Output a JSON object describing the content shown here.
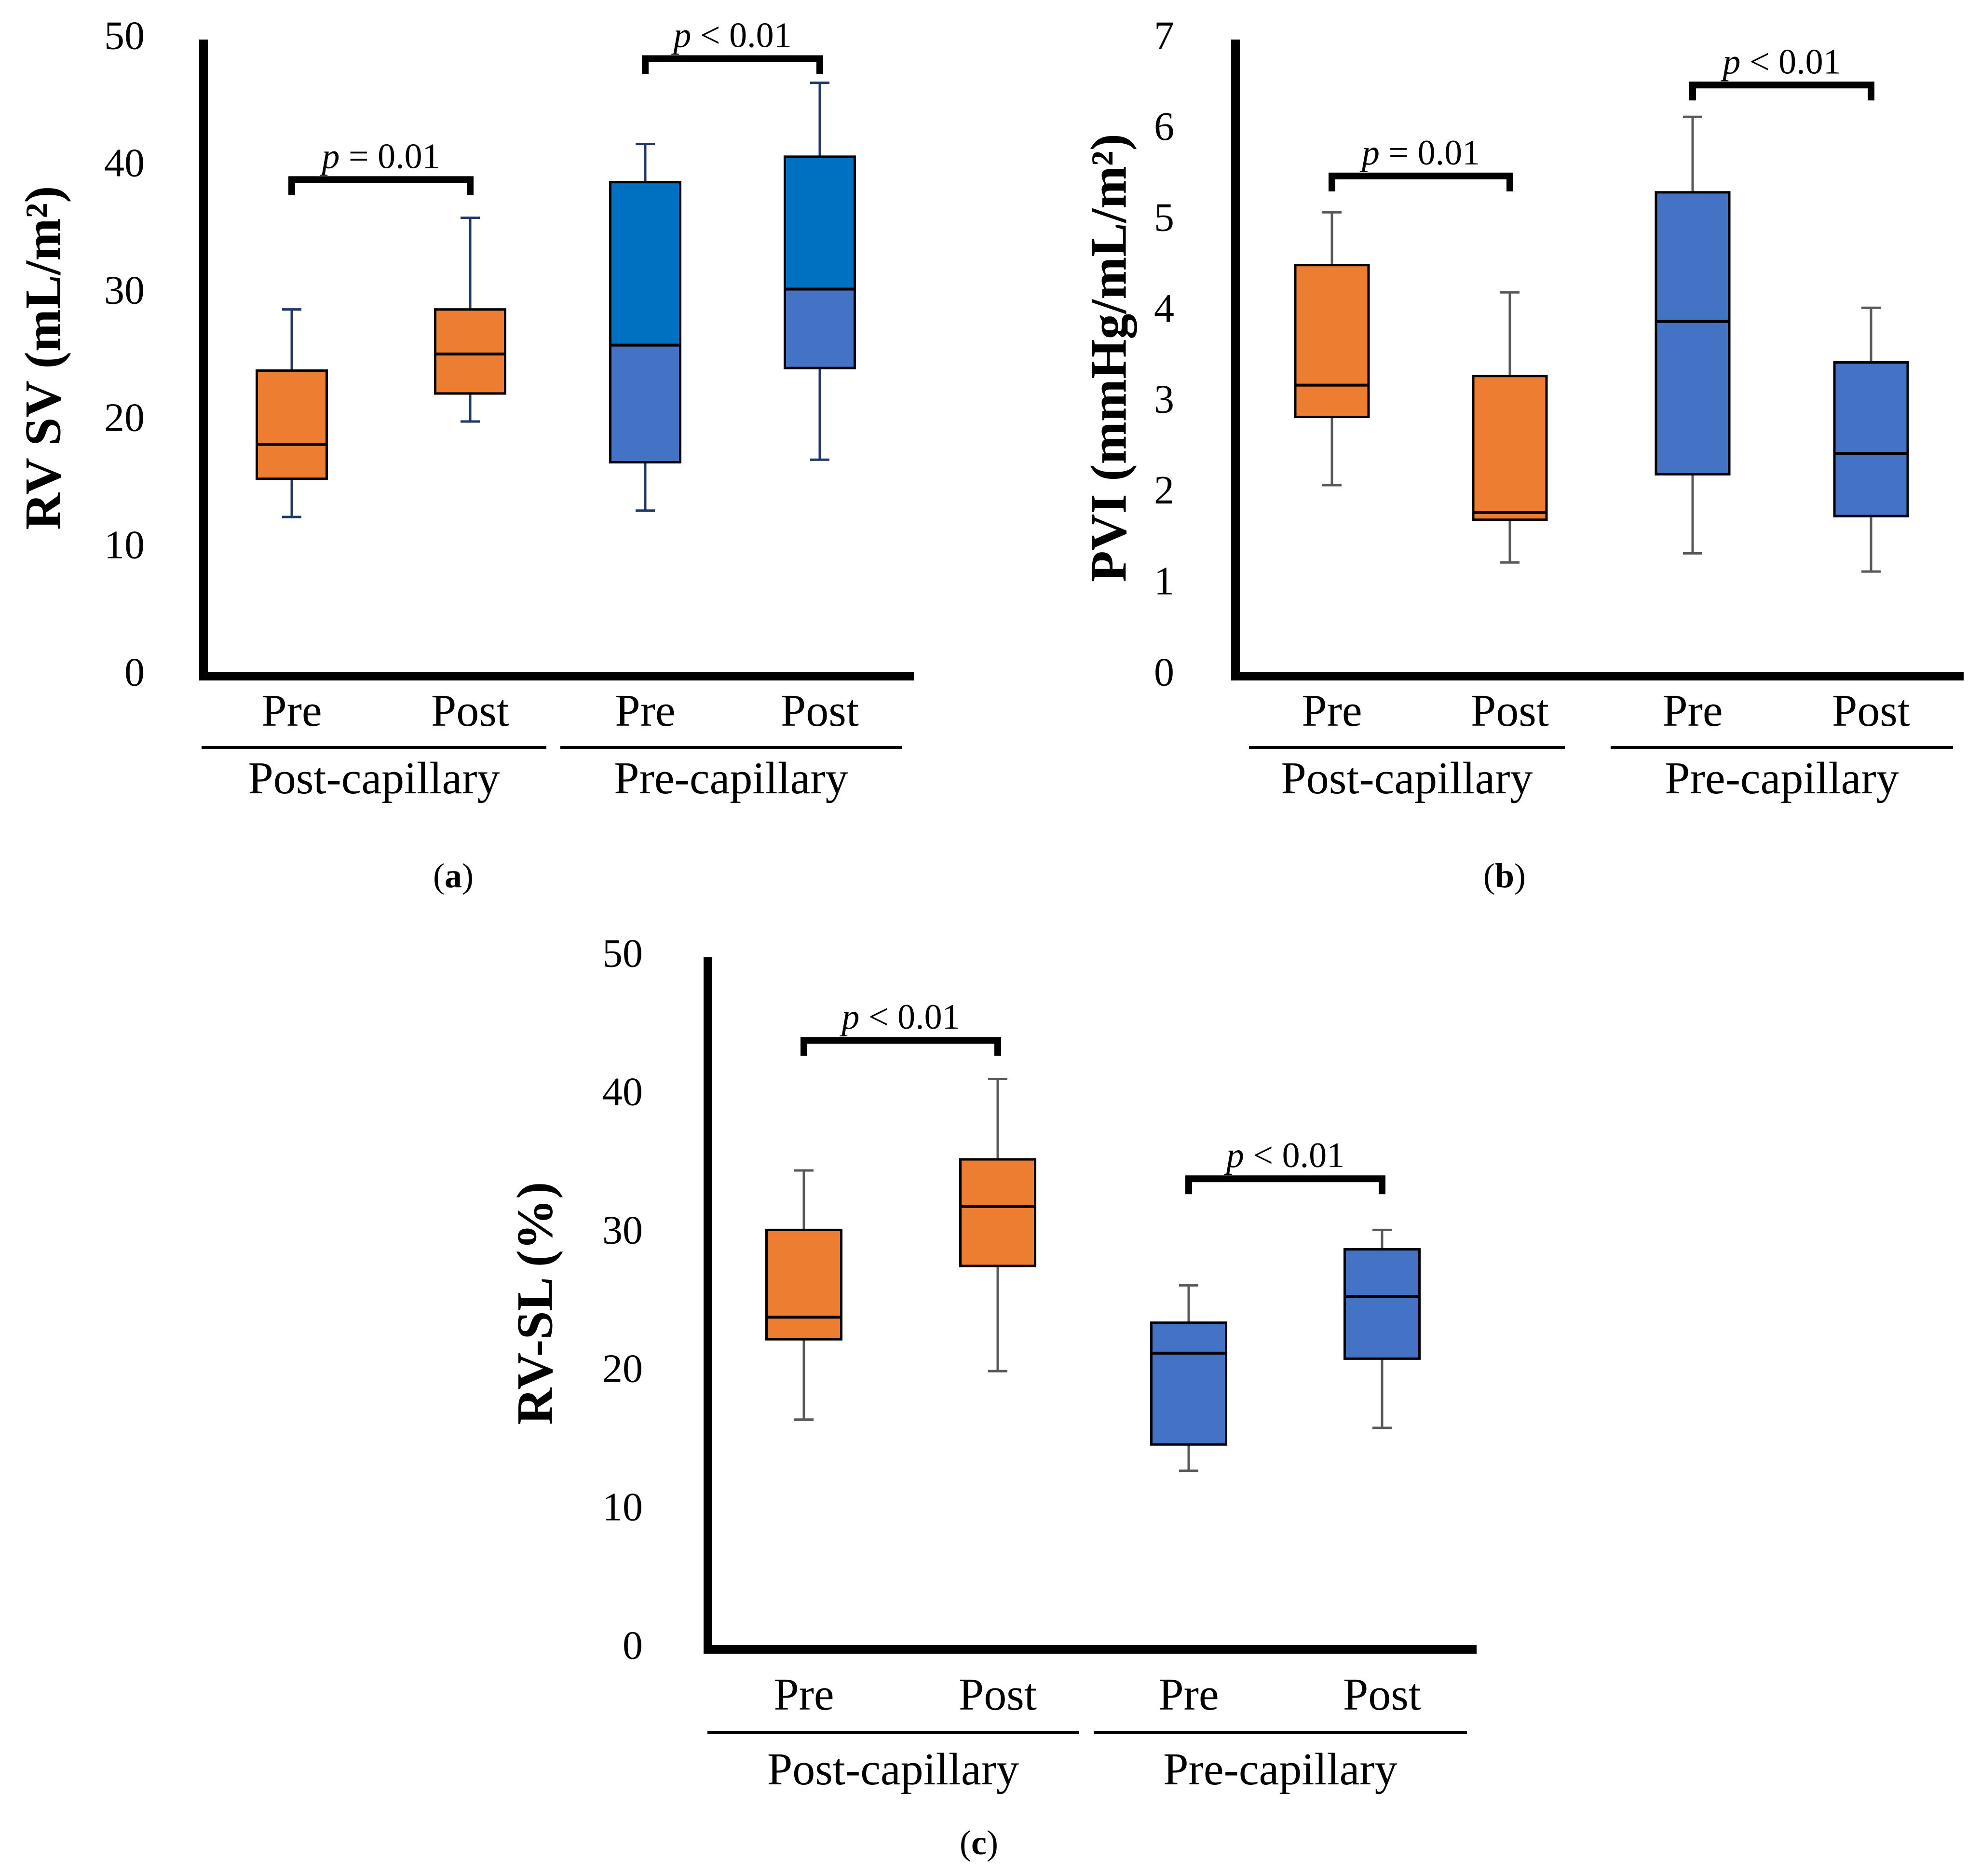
{
  "chart_data": [
    {
      "id": "a",
      "type": "boxplot",
      "panel_label": "a",
      "ylabel": "RV SV (mL/m²)",
      "ylim": [
        0,
        50
      ],
      "yticks": [
        0,
        10,
        20,
        30,
        40,
        50
      ],
      "groups": [
        "Post-capillary",
        "Pre-capillary"
      ],
      "categories": [
        "Pre",
        "Post",
        "Pre",
        "Post"
      ],
      "boxes": [
        {
          "group": "Post-capillary",
          "label": "Pre",
          "color": "#ed7d31",
          "whisker_color": "#1f3864",
          "min": 12.5,
          "q1": 15.5,
          "median": 18.2,
          "q3": 24.0,
          "max": 28.8
        },
        {
          "group": "Post-capillary",
          "label": "Post",
          "color": "#ed7d31",
          "whisker_color": "#1f3864",
          "min": 20.0,
          "q1": 22.2,
          "median": 25.3,
          "q3": 28.8,
          "max": 36.0
        },
        {
          "group": "Pre-capillary",
          "label": "Pre",
          "color": "#4472c4",
          "q3_color": "#0070c0",
          "whisker_color": "#1f3864",
          "min": 13.0,
          "q1": 16.8,
          "median": 26.0,
          "q3": 38.8,
          "max": 41.8
        },
        {
          "group": "Pre-capillary",
          "label": "Post",
          "color": "#4472c4",
          "q3_color": "#0070c0",
          "whisker_color": "#1f3864",
          "min": 17.0,
          "q1": 24.2,
          "median": 30.4,
          "q3": 40.8,
          "max": 46.6
        }
      ],
      "brackets": [
        {
          "from": 0,
          "to": 1,
          "y": 39.0,
          "p": "p",
          "rest": " = 0.01"
        },
        {
          "from": 2,
          "to": 3,
          "y": 48.5,
          "p": "p",
          "rest": " < 0.01"
        }
      ]
    },
    {
      "id": "b",
      "type": "boxplot",
      "panel_label": "b",
      "ylabel": "PVI (mmHg/mL/m²)",
      "ylim": [
        0,
        7
      ],
      "yticks": [
        0,
        1,
        2,
        3,
        4,
        5,
        6,
        7
      ],
      "groups": [
        "Post-capillary",
        "Pre-capillary"
      ],
      "categories": [
        "Pre",
        "Post",
        "Pre",
        "Post"
      ],
      "boxes": [
        {
          "group": "Post-capillary",
          "label": "Pre",
          "color": "#ed7d31",
          "whisker_color": "#595959",
          "min": 2.1,
          "q1": 2.85,
          "median": 3.2,
          "q3": 4.52,
          "max": 5.1
        },
        {
          "group": "Post-capillary",
          "label": "Post",
          "color": "#ed7d31",
          "whisker_color": "#595959",
          "min": 1.25,
          "q1": 1.72,
          "median": 1.8,
          "q3": 3.3,
          "max": 4.22
        },
        {
          "group": "Pre-capillary",
          "label": "Pre",
          "color": "#4472c4",
          "whisker_color": "#595959",
          "min": 1.35,
          "q1": 2.22,
          "median": 3.9,
          "q3": 5.32,
          "max": 6.15
        },
        {
          "group": "Pre-capillary",
          "label": "Post",
          "color": "#4472c4",
          "whisker_color": "#595959",
          "min": 1.15,
          "q1": 1.76,
          "median": 2.45,
          "q3": 3.45,
          "max": 4.05
        }
      ],
      "brackets": [
        {
          "from": 0,
          "to": 1,
          "y": 5.5,
          "p": "p",
          "rest": " = 0.01"
        },
        {
          "from": 2,
          "to": 3,
          "y": 6.5,
          "p": "p",
          "rest": " < 0.01"
        }
      ]
    },
    {
      "id": "c",
      "type": "boxplot",
      "panel_label": "c",
      "ylabel": "RV-SL (%)",
      "ylim": [
        0,
        50
      ],
      "yticks": [
        0,
        10,
        20,
        30,
        40,
        50
      ],
      "groups": [
        "Post-capillary",
        "Pre-capillary"
      ],
      "categories": [
        "Pre",
        "Post",
        "Pre",
        "Post"
      ],
      "boxes": [
        {
          "group": "Post-capillary",
          "label": "Pre",
          "color": "#ed7d31",
          "whisker_color": "#595959",
          "min": 16.6,
          "q1": 22.4,
          "median": 24.0,
          "q3": 30.3,
          "max": 34.6
        },
        {
          "group": "Post-capillary",
          "label": "Post",
          "color": "#ed7d31",
          "whisker_color": "#595959",
          "min": 20.1,
          "q1": 27.7,
          "median": 32.0,
          "q3": 35.4,
          "max": 41.2
        },
        {
          "group": "Pre-capillary",
          "label": "Pre",
          "color": "#4472c4",
          "whisker_color": "#595959",
          "min": 12.9,
          "q1": 14.8,
          "median": 21.4,
          "q3": 23.6,
          "max": 26.3
        },
        {
          "group": "Pre-capillary",
          "label": "Post",
          "color": "#4472c4",
          "whisker_color": "#595959",
          "min": 16.0,
          "q1": 21.0,
          "median": 25.5,
          "q3": 28.9,
          "max": 30.3
        }
      ],
      "brackets": [
        {
          "from": 0,
          "to": 1,
          "y": 44.0,
          "p": "p",
          "rest": " < 0.01"
        },
        {
          "from": 2,
          "to": 3,
          "y": 34.0,
          "p": "p",
          "rest": " < 0.01"
        }
      ]
    }
  ]
}
